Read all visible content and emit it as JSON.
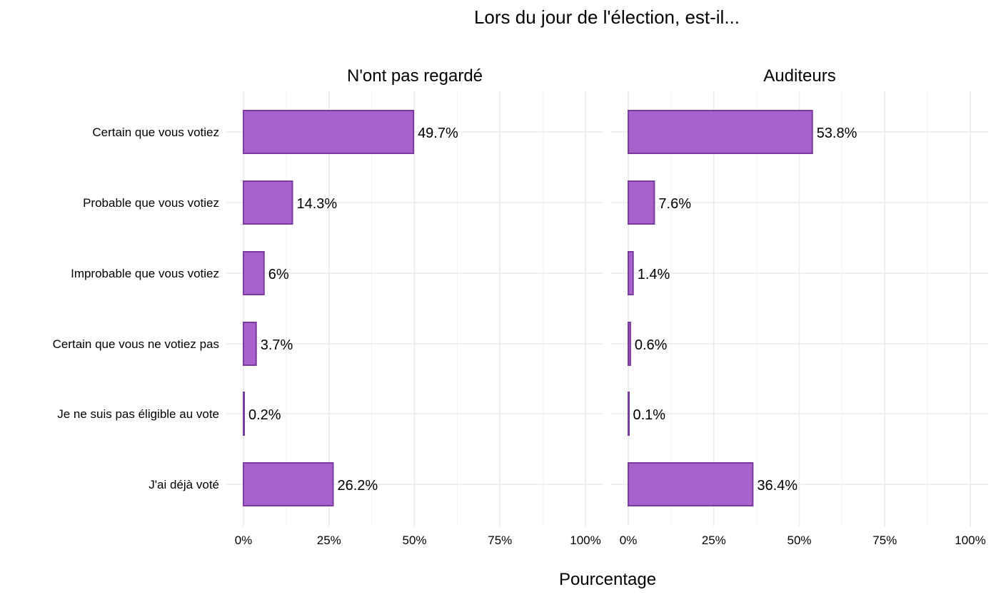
{
  "chart_data": {
    "type": "bar",
    "orientation": "horizontal",
    "title": "Lors du jour de l'élection, est-il...",
    "xlabel": "Pourcentage",
    "ylabel": "",
    "xlim": [
      0,
      100
    ],
    "x_ticks": [
      "0%",
      "25%",
      "50%",
      "75%",
      "100%"
    ],
    "x_tick_values": [
      0,
      25,
      50,
      75,
      100
    ],
    "grid": true,
    "categories": [
      "Certain que vous votiez",
      "Probable que vous votiez",
      "Improbable que vous votiez",
      "Certain que vous ne votiez pas",
      "Je ne suis pas éligible au vote",
      "J'ai déjà voté"
    ],
    "panels": [
      {
        "title": "N'ont pas regardé",
        "values": [
          49.7,
          14.3,
          6,
          3.7,
          0.2,
          26.2
        ],
        "labels": [
          "49.7%",
          "14.3%",
          "6%",
          "3.7%",
          "0.2%",
          "26.2%"
        ]
      },
      {
        "title": "Auditeurs",
        "values": [
          53.8,
          7.6,
          1.4,
          0.6,
          0.1,
          36.4
        ],
        "labels": [
          "53.8%",
          "7.6%",
          "1.4%",
          "0.6%",
          "0.1%",
          "36.4%"
        ]
      }
    ],
    "colors": {
      "fill": "#a962cc",
      "stroke": "#7b3aa0",
      "grid": "#ebebeb"
    }
  }
}
